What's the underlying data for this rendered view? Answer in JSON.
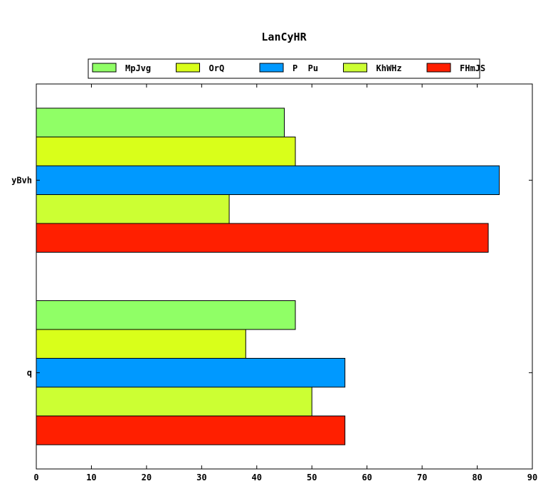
{
  "chart_data": {
    "type": "bar",
    "orientation": "horizontal",
    "title": "LanCyHR",
    "xlabel": "",
    "ylabel": "",
    "xlim": [
      0,
      90
    ],
    "x_ticks": [
      "0",
      "10",
      "20",
      "30",
      "40",
      "50",
      "60",
      "70",
      "80",
      "90"
    ],
    "categories": [
      "yBvh",
      "q"
    ],
    "legend_position": "top-center",
    "grid": false,
    "series": [
      {
        "name": "MpJvg",
        "color": "#90ff66",
        "values": [
          45,
          47
        ]
      },
      {
        "name": "OrQ",
        "color": "#d9ff1a",
        "values": [
          47,
          38
        ]
      },
      {
        "name": "P  Pu",
        "color": "#0099ff",
        "values": [
          84,
          56
        ]
      },
      {
        "name": "KhWHz",
        "color": "#ccff33",
        "values": [
          35,
          50
        ]
      },
      {
        "name": "FHmJS",
        "color": "#ff1f00",
        "values": [
          82,
          56
        ]
      }
    ]
  }
}
